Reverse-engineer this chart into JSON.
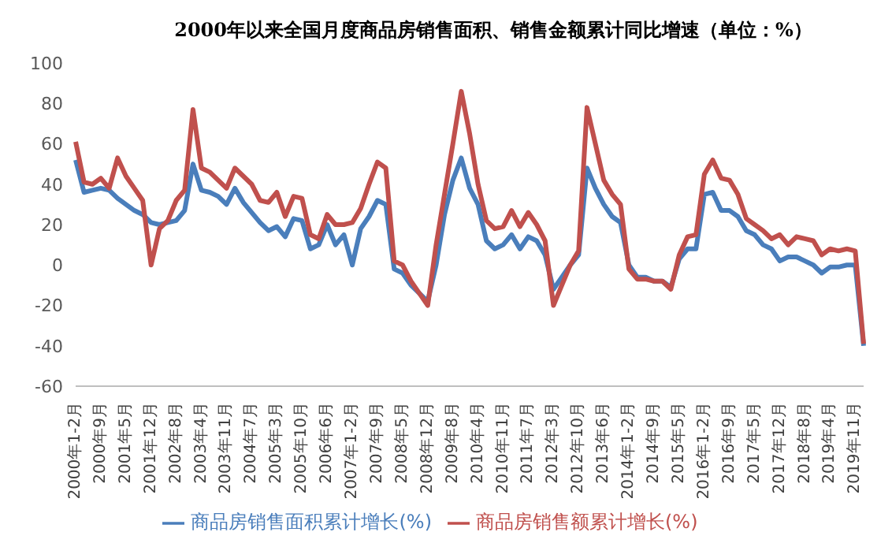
{
  "chart_data": {
    "type": "line",
    "title": "2000年以来全国月度商品房销售面积、销售金额累计同比增速（单位：%）",
    "categories": [
      "2000年1-2月",
      null,
      null,
      "2000年9月",
      null,
      null,
      "2001年5月",
      null,
      null,
      "2001年12月",
      null,
      null,
      "2002年8月",
      null,
      null,
      "2003年4月",
      null,
      null,
      "2003年11月",
      null,
      null,
      "2004年7月",
      null,
      null,
      "2005年3月",
      null,
      null,
      "2005年10月",
      null,
      null,
      "2006年6月",
      null,
      null,
      "2007年1-2月",
      null,
      null,
      "2007年9月",
      null,
      null,
      "2008年5月",
      null,
      null,
      "2008年12月",
      null,
      null,
      "2009年8月",
      null,
      null,
      "2010年4月",
      null,
      null,
      "2010年11月",
      null,
      null,
      "2011年7月",
      null,
      null,
      "2012年3月",
      null,
      null,
      "2012年10月",
      null,
      null,
      "2013年6月",
      null,
      null,
      "2014年1-2月",
      null,
      null,
      "2014年9月",
      null,
      null,
      "2015年5月",
      null,
      null,
      "2016年1-2月",
      null,
      null,
      "2016年9月",
      null,
      null,
      "2017年5月",
      null,
      null,
      "2017年12月",
      null,
      null,
      "2018年8月",
      null,
      null,
      "2019年4月",
      null,
      null,
      "2019年11月",
      null
    ],
    "series": [
      {
        "name": "商品房销售面积累计增长(%)",
        "color": "#4a7ebb",
        "values": [
          52,
          36,
          37,
          38,
          37,
          33,
          30,
          27,
          25,
          21,
          20,
          21,
          22,
          27,
          50,
          37,
          36,
          34,
          30,
          38,
          31,
          26,
          21,
          17,
          19,
          14,
          23,
          22,
          8,
          10,
          20,
          10,
          15,
          0,
          18,
          24,
          32,
          30,
          -2,
          -4,
          -10,
          -14,
          -18,
          0,
          25,
          42,
          53,
          38,
          30,
          12,
          8,
          10,
          15,
          8,
          14,
          12,
          5,
          -12,
          -6,
          0,
          5,
          48,
          38,
          30,
          24,
          21,
          0,
          -6,
          -6,
          -8,
          -8,
          -11,
          3,
          8,
          8,
          35,
          36,
          27,
          27,
          24,
          17,
          15,
          10,
          8,
          2,
          4,
          4,
          2,
          0,
          -4,
          -1,
          -1,
          0,
          0,
          -40
        ]
      },
      {
        "name": "商品房销售额累计增长(%)",
        "color": "#c0504d",
        "values": [
          61,
          41,
          40,
          43,
          38,
          53,
          44,
          38,
          32,
          0,
          18,
          22,
          32,
          37,
          77,
          48,
          46,
          42,
          38,
          48,
          44,
          40,
          32,
          31,
          36,
          24,
          34,
          33,
          15,
          13,
          25,
          20,
          20,
          21,
          28,
          40,
          51,
          48,
          2,
          0,
          -8,
          -14,
          -20,
          10,
          35,
          60,
          86,
          65,
          40,
          22,
          18,
          19,
          27,
          19,
          26,
          20,
          12,
          -20,
          -10,
          0,
          7,
          78,
          60,
          42,
          35,
          30,
          -2,
          -7,
          -7,
          -8,
          -8,
          -12,
          5,
          14,
          15,
          45,
          52,
          43,
          42,
          35,
          23,
          20,
          17,
          13,
          15,
          10,
          14,
          13,
          12,
          5,
          8,
          7,
          8,
          7,
          -39
        ]
      }
    ],
    "ylim": [
      -60,
      100
    ],
    "yticks": [
      -60,
      -40,
      -20,
      0,
      20,
      40,
      60,
      80,
      100
    ],
    "grid": false,
    "legend": "bottom",
    "marker": "none",
    "line_style": "solid"
  }
}
